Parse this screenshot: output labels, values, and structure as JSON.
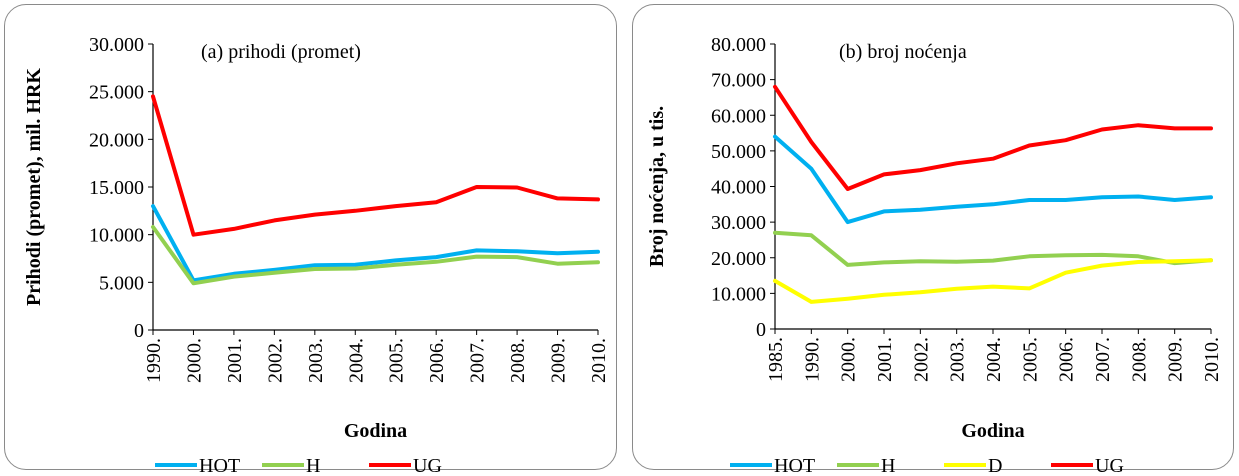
{
  "chart_data": [
    {
      "type": "line",
      "title": "(a) prihodi (promet)",
      "xlabel": "Godina",
      "ylabel": "Prihodi (promet), mil. HRK",
      "categories": [
        "1990.",
        "2000.",
        "2001.",
        "2002.",
        "2003.",
        "2004.",
        "2005.",
        "2006.",
        "2007.",
        "2008.",
        "2009.",
        "2010."
      ],
      "ylim": [
        0,
        30000
      ],
      "yticks": [
        0,
        5000,
        10000,
        15000,
        20000,
        25000,
        30000
      ],
      "ytick_labels": [
        "0",
        "5.000",
        "10.000",
        "15.000",
        "20.000",
        "25.000",
        "30.000"
      ],
      "grid": false,
      "legend_position": "bottom",
      "series": [
        {
          "name": "HOT",
          "color": "#00b0f0",
          "values": [
            13000,
            5200,
            5900,
            6300,
            6800,
            6850,
            7300,
            7650,
            8350,
            8250,
            8050,
            8200
          ]
        },
        {
          "name": "H",
          "color": "#92d050",
          "values": [
            10800,
            4900,
            5600,
            6000,
            6400,
            6450,
            6850,
            7150,
            7700,
            7650,
            6950,
            7100
          ]
        },
        {
          "name": "UG",
          "color": "#ff0000",
          "values": [
            24500,
            10000,
            10600,
            11500,
            12100,
            12500,
            13000,
            13400,
            15000,
            14950,
            13800,
            13700
          ]
        }
      ]
    },
    {
      "type": "line",
      "title": "(b) broj noćenja",
      "xlabel": "Godina",
      "ylabel": "Broj noćenja, u tis.",
      "categories": [
        "1985.",
        "1990.",
        "2000.",
        "2001.",
        "2002.",
        "2003.",
        "2004.",
        "2005.",
        "2006.",
        "2007.",
        "2008.",
        "2009.",
        "2010."
      ],
      "ylim": [
        0,
        80000
      ],
      "yticks": [
        0,
        10000,
        20000,
        30000,
        40000,
        50000,
        60000,
        70000,
        80000
      ],
      "ytick_labels": [
        "0",
        "10.000",
        "20.000",
        "30.000",
        "40.000",
        "50.000",
        "60.000",
        "70.000",
        "80.000"
      ],
      "grid": false,
      "legend_position": "bottom",
      "series": [
        {
          "name": "HOT",
          "color": "#00b0f0",
          "values": [
            54000,
            45000,
            30000,
            33000,
            33500,
            34300,
            35000,
            36200,
            36200,
            37000,
            37200,
            36200,
            37000
          ]
        },
        {
          "name": "H",
          "color": "#92d050",
          "values": [
            27000,
            26300,
            18000,
            18700,
            19000,
            18900,
            19200,
            20400,
            20700,
            20800,
            20400,
            18500,
            19300
          ]
        },
        {
          "name": "D",
          "color": "#ffff00",
          "values": [
            13500,
            7600,
            8500,
            9600,
            10300,
            11300,
            11900,
            11400,
            15800,
            17800,
            18800,
            19000,
            19300
          ]
        },
        {
          "name": "UG",
          "color": "#ff0000",
          "values": [
            68000,
            52500,
            39300,
            43400,
            44600,
            46500,
            47800,
            51500,
            53000,
            56000,
            57200,
            56300,
            56300
          ]
        }
      ]
    }
  ]
}
